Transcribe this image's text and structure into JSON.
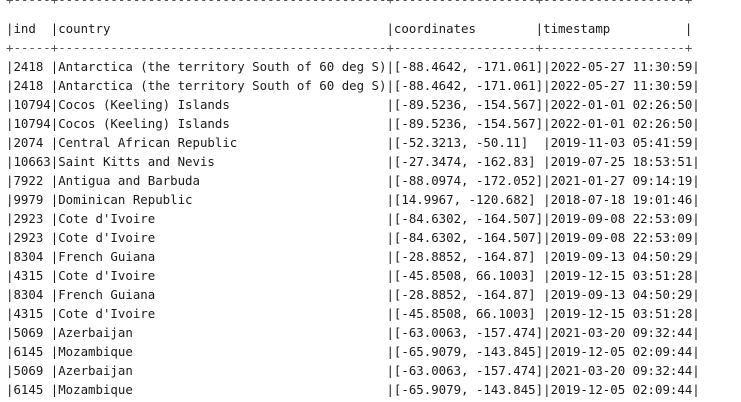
{
  "table": {
    "top_border": "+-----+--------------------------------------------+-------------------+-------------------+",
    "header": "|ind  |country                                     |coordinates        |timestamp          |",
    "header_separator": "+-----+--------------------------------------------+-------------------+-------------------+",
    "rows": [
      "|2418 |Antarctica (the territory South of 60 deg S)|[-88.4642, -171.061]|2022-05-27 11:30:59|",
      "|2418 |Antarctica (the territory South of 60 deg S)|[-88.4642, -171.061]|2022-05-27 11:30:59|",
      "|10794|Cocos (Keeling) Islands                     |[-89.5236, -154.567]|2022-01-01 02:26:50|",
      "|10794|Cocos (Keeling) Islands                     |[-89.5236, -154.567]|2022-01-01 02:26:50|",
      "|2074 |Central African Republic                    |[-52.3213, -50.11]  |2019-11-03 05:41:59|",
      "|10663|Saint Kitts and Nevis                       |[-27.3474, -162.83] |2019-07-25 18:53:51|",
      "|7922 |Antigua and Barbuda                         |[-88.0974, -172.052]|2021-01-27 09:14:19|",
      "|9979 |Dominican Republic                          |[14.9967, -120.682] |2018-07-18 19:01:46|",
      "|2923 |Cote d'Ivoire                               |[-84.6302, -164.507]|2019-09-08 22:53:09|",
      "|2923 |Cote d'Ivoire                               |[-84.6302, -164.507]|2019-09-08 22:53:09|",
      "|8304 |French Guiana                               |[-28.8852, -164.87] |2019-09-13 04:50:29|",
      "|4315 |Cote d'Ivoire                               |[-45.8508, 66.1003] |2019-12-15 03:51:28|",
      "|8304 |French Guiana                               |[-28.8852, -164.87] |2019-09-13 04:50:29|",
      "|4315 |Cote d'Ivoire                               |[-45.8508, 66.1003] |2019-12-15 03:51:28|",
      "|5069 |Azerbaijan                                  |[-63.0063, -157.474]|2021-03-20 09:32:44|",
      "|6145 |Mozambique                                  |[-65.9079, -143.845]|2019-12-05 02:09:44|",
      "|5069 |Azerbaijan                                  |[-63.0063, -157.474]|2021-03-20 09:32:44|",
      "|6145 |Mozambique                                  |[-65.9079, -143.845]|2019-12-05 02:09:44|"
    ]
  }
}
